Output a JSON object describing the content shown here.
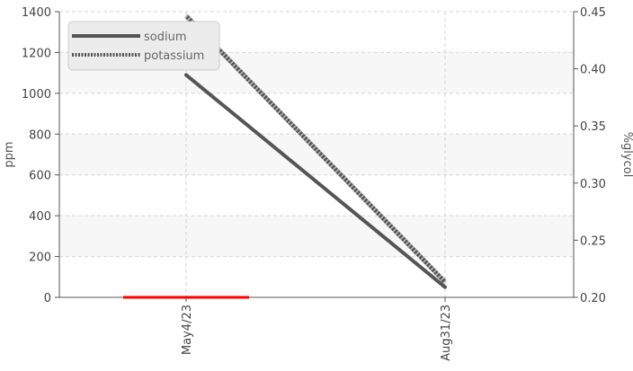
{
  "chart_data": {
    "type": "line",
    "x_categories": [
      "May4/23",
      "Aug31/23"
    ],
    "y_left": {
      "label": "ppm",
      "range": [
        0,
        1400
      ],
      "ticks": [
        "0",
        "200",
        "400",
        "600",
        "800",
        "1000",
        "1200",
        "1400"
      ]
    },
    "y_right": {
      "label": "%glycol",
      "range": [
        0.2,
        0.45
      ],
      "ticks": [
        "0.20",
        "0.25",
        "0.30",
        "0.35",
        "0.40",
        "0.45"
      ]
    },
    "series": [
      {
        "name": "sodium",
        "axis": "left",
        "style": "solid",
        "color": "#555555",
        "values": [
          1090,
          50
        ]
      },
      {
        "name": "potassium",
        "axis": "left",
        "style": "dotted",
        "color": "#555555",
        "values": [
          1380,
          75
        ]
      },
      {
        "name": "",
        "axis": "right",
        "style": "solid",
        "color": "#ff0000",
        "values": [
          0.2
        ],
        "note_extent": "flat segment around first date"
      }
    ],
    "legend": {
      "position": "top-left"
    },
    "grid": true
  }
}
